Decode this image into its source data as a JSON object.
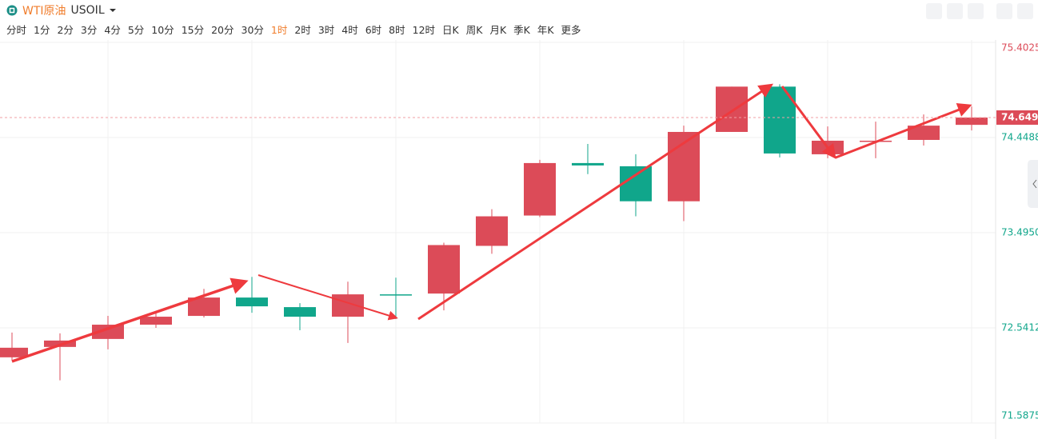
{
  "toolbar": {
    "symbol_name": "WTI原油",
    "symbol_code": "USOIL",
    "intervals": [
      "分时",
      "1分",
      "2分",
      "3分",
      "4分",
      "5分",
      "10分",
      "15分",
      "20分",
      "30分",
      "1时",
      "2时",
      "3时",
      "4时",
      "6时",
      "8时",
      "12时",
      "日K",
      "周K",
      "月K",
      "季K",
      "年K",
      "更多"
    ],
    "active_interval": 10
  },
  "chart_data": {
    "type": "candlestick",
    "open": [
      72.246,
      72.35,
      72.43,
      72.573,
      72.661,
      72.845,
      72.749,
      72.653,
      72.877,
      72.885,
      73.363,
      73.667,
      74.193,
      74.161,
      73.81,
      74.505,
      74.959,
      74.281,
      74.409,
      74.425,
      74.576
    ],
    "high": [
      72.494,
      72.486,
      72.661,
      72.709,
      72.932,
      73.052,
      72.789,
      73.004,
      73.044,
      73.395,
      73.73,
      74.225,
      74.385,
      74.281,
      74.568,
      74.959,
      74.983,
      74.56,
      74.608,
      74.68,
      74.76
    ],
    "low": [
      72.214,
      72.015,
      72.326,
      72.541,
      72.645,
      72.693,
      72.517,
      72.39,
      72.629,
      72.717,
      73.284,
      73.651,
      74.082,
      73.659,
      73.611,
      74.505,
      74.249,
      74.241,
      74.241,
      74.369,
      74.52
    ],
    "close": [
      72.342,
      72.414,
      72.573,
      72.653,
      72.845,
      72.757,
      72.653,
      72.877,
      72.869,
      73.371,
      73.659,
      74.193,
      74.169,
      73.81,
      74.505,
      74.959,
      74.289,
      74.417,
      74.417,
      74.568,
      74.649
    ],
    "up_color": "#dc4b58",
    "down_color": "#10a68b",
    "ylim": [
      71.5875,
      75.4025
    ],
    "yticks": [
      75.4025,
      74.4488,
      {
        "value": 73.495,
        "label": "73.4950"
      },
      72.5412,
      71.5875
    ],
    "last_price": {
      "value": 74.649,
      "label": "74.6490"
    },
    "grid": true
  }
}
